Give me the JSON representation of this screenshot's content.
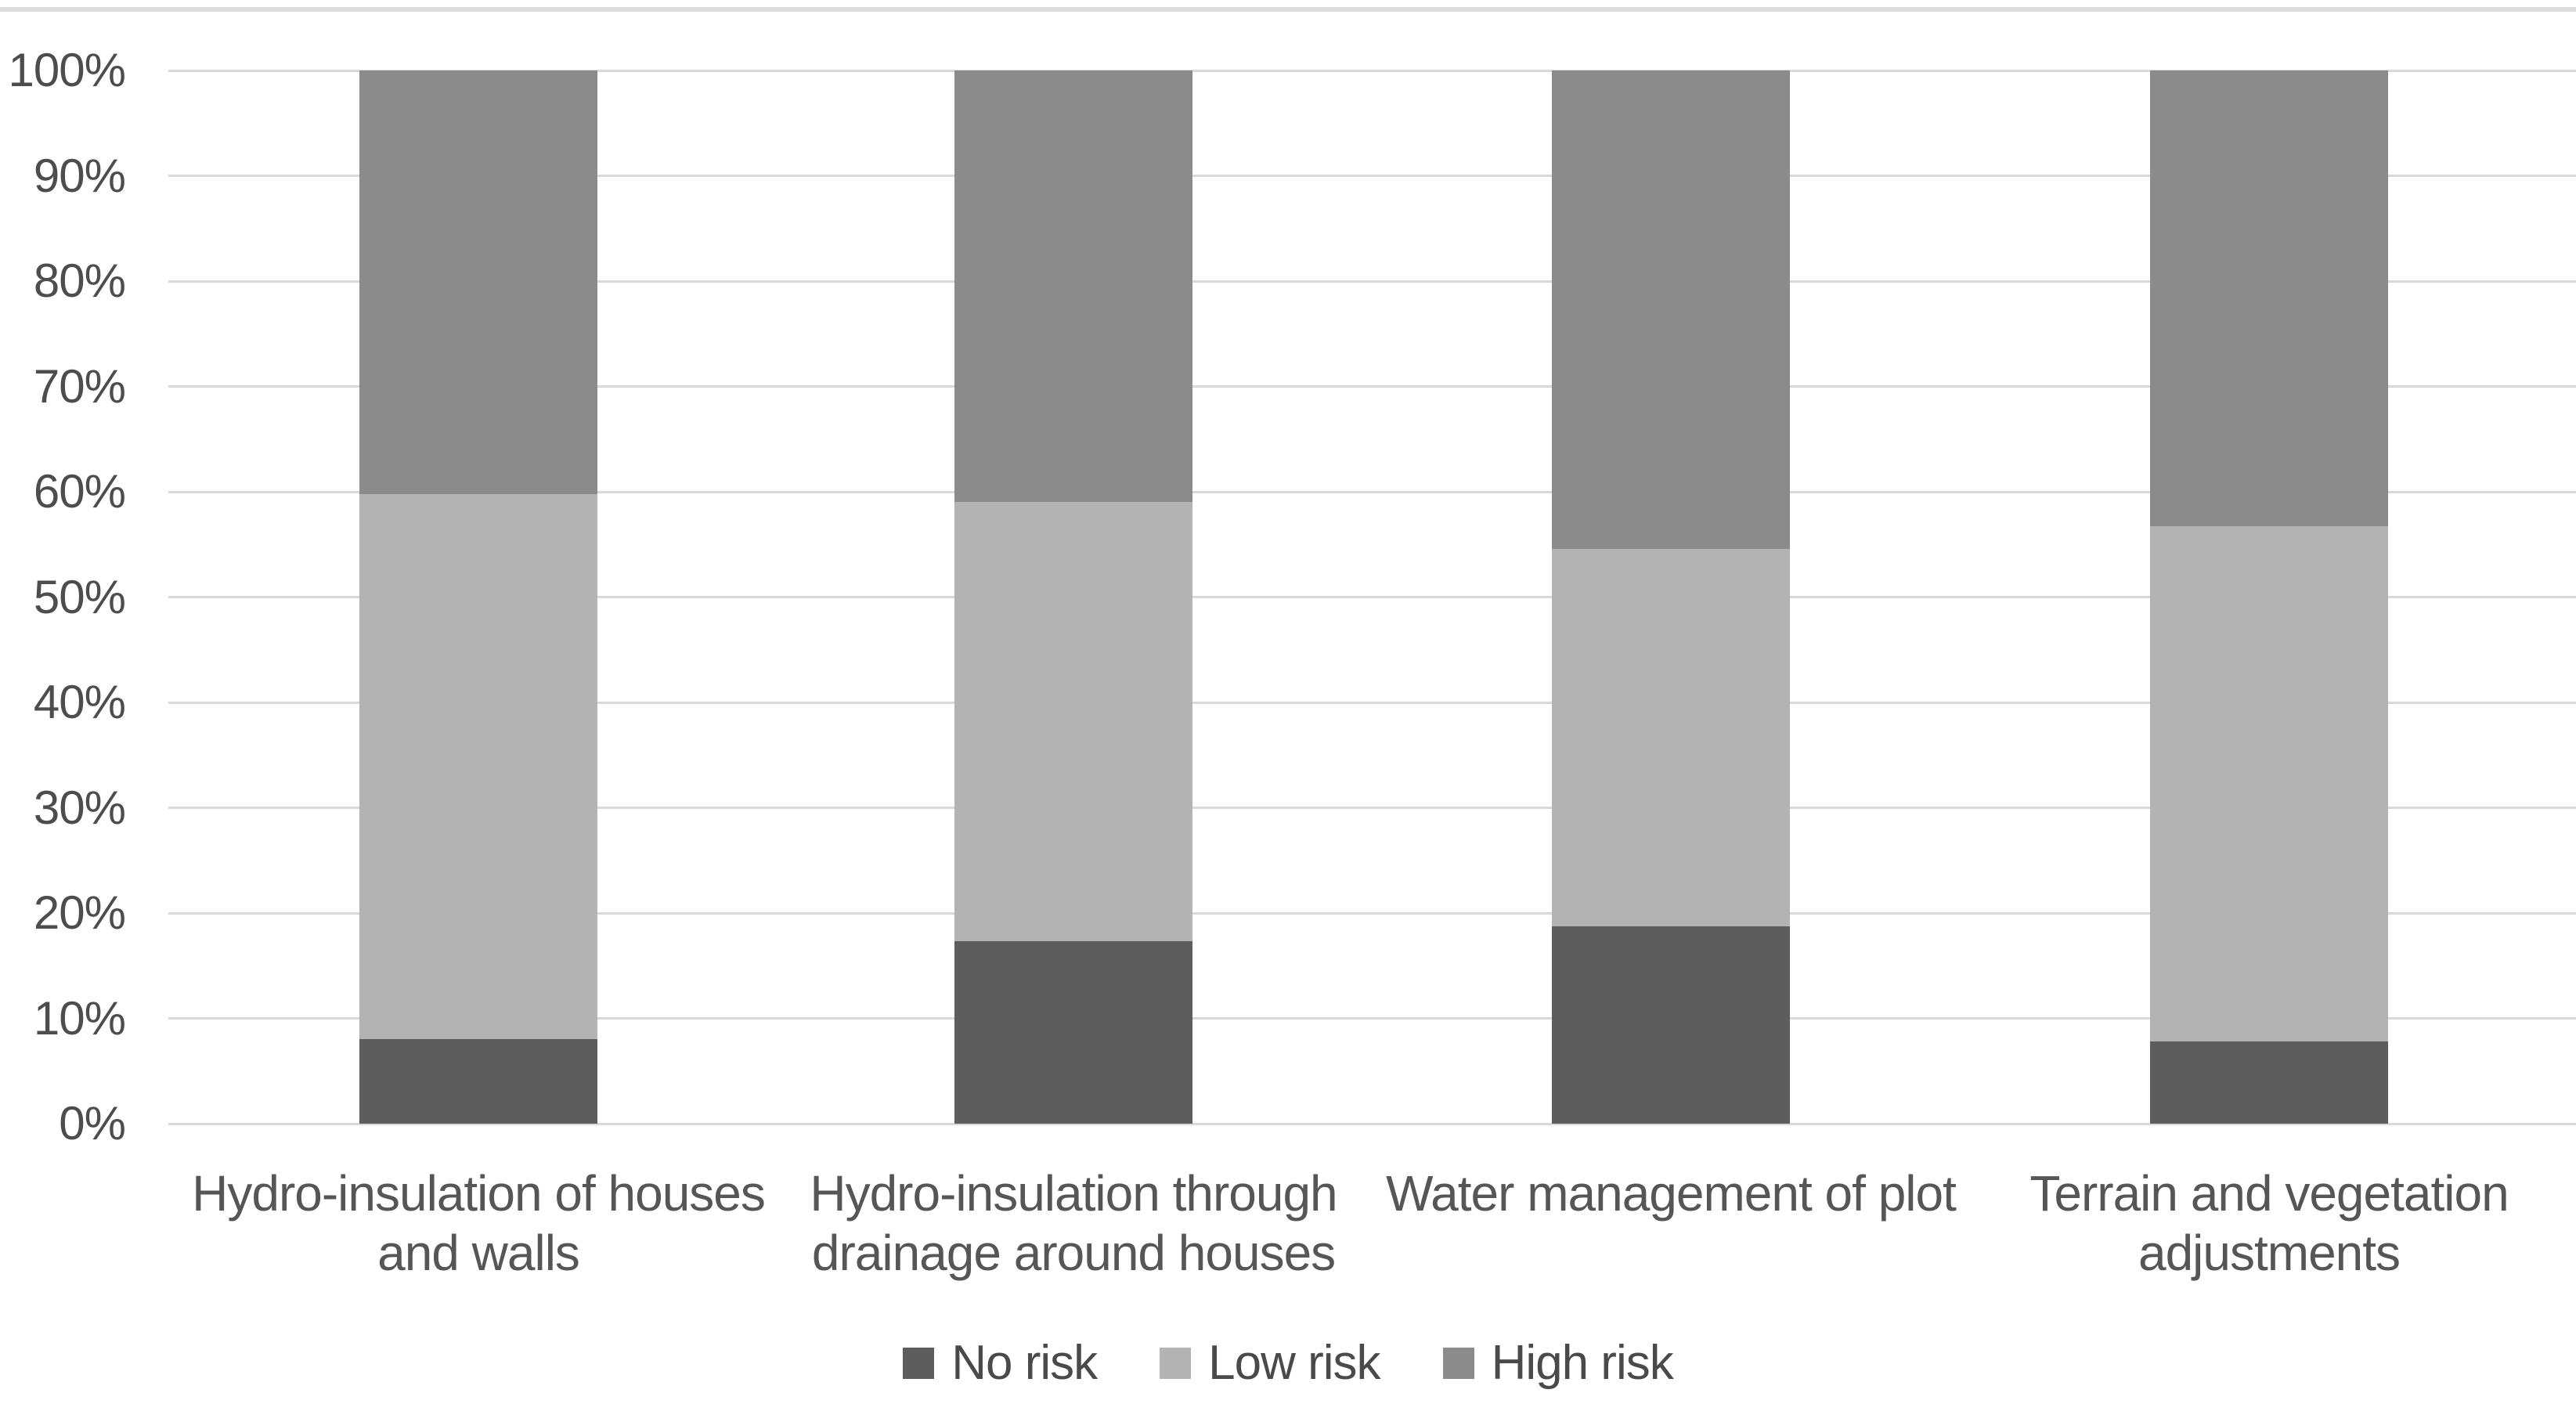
{
  "chart_data": {
    "type": "bar",
    "stacked": true,
    "percent_stacked": true,
    "title": "",
    "xlabel": "",
    "ylabel": "",
    "ylim": [
      0,
      100
    ],
    "grid": true,
    "legend_position": "bottom",
    "yticks": [
      "0%",
      "10%",
      "20%",
      "30%",
      "40%",
      "50%",
      "60%",
      "70%",
      "80%",
      "90%",
      "100%"
    ],
    "categories": [
      "Hydro-insulation of houses and walls",
      "Hydro-insulation through drainage around houses",
      "Water management of plot",
      "Terrain and vegetation adjustments"
    ],
    "category_lines": [
      [
        "Hydro-insulation of houses",
        "and walls"
      ],
      [
        "Hydro-insulation through",
        "drainage around houses"
      ],
      [
        "Water management of plot"
      ],
      [
        "Terrain and vegetation",
        "adjustments"
      ]
    ],
    "series": [
      {
        "name": "No risk",
        "color": "#5d5d5d",
        "values": [
          8.0,
          17.3,
          18.7,
          7.8
        ]
      },
      {
        "name": "Low risk",
        "color": "#b3b3b3",
        "values": [
          51.8,
          41.7,
          35.9,
          48.9
        ]
      },
      {
        "name": "High risk",
        "color": "#8b8b8b",
        "values": [
          40.2,
          41.0,
          45.4,
          43.3
        ]
      }
    ]
  },
  "colors": {
    "gridline": "#d9d9d9",
    "top_border": "#dcdcdc",
    "axis_text": "#4d4d4d",
    "category_text": "#565656",
    "legend_text": "#4a4a4a",
    "background": "#ffffff"
  }
}
